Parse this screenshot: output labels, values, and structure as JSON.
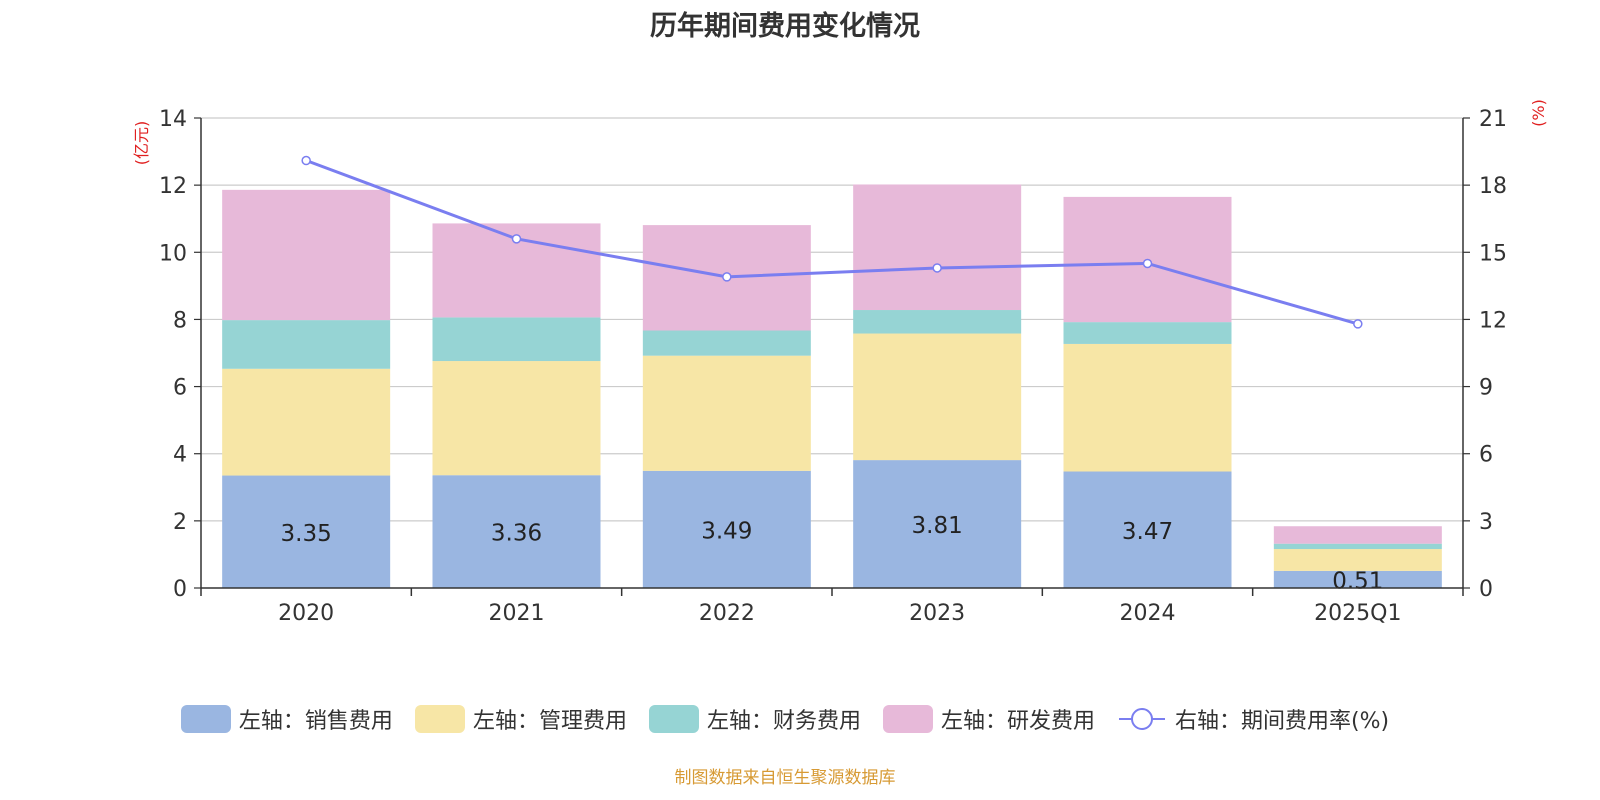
{
  "chart_data": {
    "type": "bar",
    "title": "历年期间费用变化情况",
    "categories": [
      "2020",
      "2021",
      "2022",
      "2023",
      "2024",
      "2025Q1"
    ],
    "left_axis_unit": "(亿元)",
    "right_axis_unit": "(%)",
    "left_ylim": [
      0,
      14
    ],
    "left_ticks": [
      0,
      2,
      4,
      6,
      8,
      10,
      12,
      14
    ],
    "right_ylim": [
      0,
      21
    ],
    "right_ticks": [
      0,
      3,
      6,
      9,
      12,
      15,
      18,
      21
    ],
    "grid": true,
    "legend_position": "bottom",
    "stacked": true,
    "series": [
      {
        "name": "左轴：销售费用",
        "axis": "left",
        "type": "bar",
        "color": "#9ab6e1",
        "values": [
          3.35,
          3.36,
          3.49,
          3.81,
          3.47,
          0.51
        ],
        "show_labels": true
      },
      {
        "name": "左轴：管理费用",
        "axis": "left",
        "type": "bar",
        "color": "#f7e6a6",
        "values": [
          3.18,
          3.4,
          3.43,
          3.77,
          3.8,
          0.65
        ]
      },
      {
        "name": "左轴：财务费用",
        "axis": "left",
        "type": "bar",
        "color": "#96d4d4",
        "values": [
          1.45,
          1.3,
          0.75,
          0.7,
          0.65,
          0.16
        ]
      },
      {
        "name": "左轴：研发费用",
        "axis": "left",
        "type": "bar",
        "color": "#e7b9d9",
        "values": [
          3.88,
          2.8,
          3.14,
          3.74,
          3.73,
          0.52
        ]
      },
      {
        "name": "右轴：期间费用率(%)",
        "axis": "right",
        "type": "line",
        "color": "#7a7ef0",
        "values": [
          19.1,
          15.6,
          13.9,
          14.3,
          14.5,
          11.8
        ]
      }
    ],
    "source": "制图数据来自恒生聚源数据库"
  }
}
